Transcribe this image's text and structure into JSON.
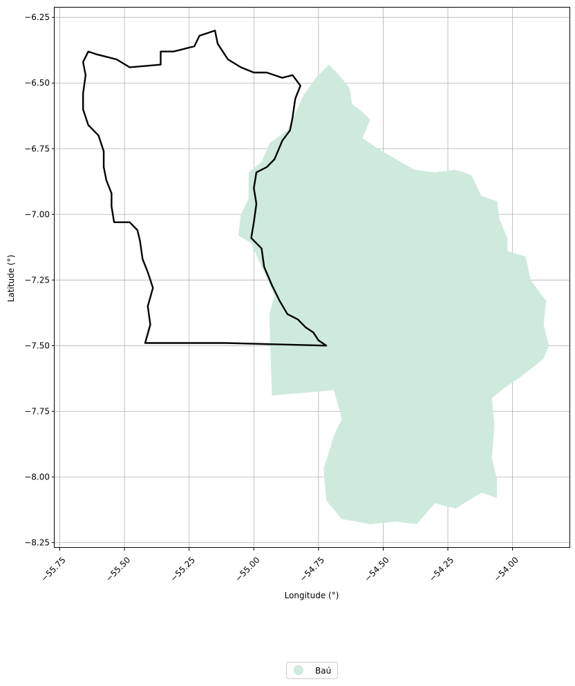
{
  "chart_data": {
    "type": "map",
    "xlabel": "Longitude (°)",
    "ylabel": "Latitude (°)",
    "xlim": [
      -55.77,
      -53.78
    ],
    "ylim": [
      -8.27,
      -6.21
    ],
    "x_ticks": [
      -55.75,
      -55.5,
      -55.25,
      -55.0,
      -54.75,
      -54.5,
      -54.25,
      -54.0
    ],
    "x_tick_labels": [
      "−55.75",
      "−55.50",
      "−55.25",
      "−55.00",
      "−54.75",
      "−54.50",
      "−54.25",
      "−54.00"
    ],
    "y_ticks": [
      -6.25,
      -6.5,
      -6.75,
      -7.0,
      -7.25,
      -7.5,
      -7.75,
      -8.0,
      -8.25
    ],
    "y_tick_labels": [
      "−6.25",
      "−6.50",
      "−6.75",
      "−7.00",
      "−7.25",
      "−7.50",
      "−7.75",
      "−8.00",
      "−8.25"
    ],
    "grid": true,
    "legend": {
      "placement": "bottom-center",
      "entries": [
        {
          "label": "Baú",
          "color": "#cdeadd"
        }
      ]
    },
    "region": {
      "name": "Baú",
      "color": "#cdeadd",
      "polygon": [
        [
          -54.71,
          -6.43
        ],
        [
          -54.67,
          -6.47
        ],
        [
          -54.63,
          -6.52
        ],
        [
          -54.62,
          -6.58
        ],
        [
          -54.58,
          -6.61
        ],
        [
          -54.55,
          -6.64
        ],
        [
          -54.58,
          -6.71
        ],
        [
          -54.52,
          -6.75
        ],
        [
          -54.45,
          -6.79
        ],
        [
          -54.38,
          -6.83
        ],
        [
          -54.3,
          -6.84
        ],
        [
          -54.22,
          -6.83
        ],
        [
          -54.16,
          -6.85
        ],
        [
          -54.12,
          -6.93
        ],
        [
          -54.06,
          -6.95
        ],
        [
          -54.05,
          -7.02
        ],
        [
          -54.02,
          -7.09
        ],
        [
          -54.02,
          -7.14
        ],
        [
          -53.95,
          -7.16
        ],
        [
          -53.93,
          -7.25
        ],
        [
          -53.87,
          -7.33
        ],
        [
          -53.88,
          -7.42
        ],
        [
          -53.86,
          -7.5
        ],
        [
          -53.88,
          -7.55
        ],
        [
          -53.97,
          -7.62
        ],
        [
          -54.03,
          -7.66
        ],
        [
          -54.08,
          -7.7
        ],
        [
          -54.07,
          -7.8
        ],
        [
          -54.08,
          -7.93
        ],
        [
          -54.06,
          -8.01
        ],
        [
          -54.06,
          -8.08
        ],
        [
          -54.12,
          -8.06
        ],
        [
          -54.22,
          -8.12
        ],
        [
          -54.3,
          -8.1
        ],
        [
          -54.37,
          -8.18
        ],
        [
          -54.45,
          -8.17
        ],
        [
          -54.55,
          -8.18
        ],
        [
          -54.66,
          -8.16
        ],
        [
          -54.72,
          -8.09
        ],
        [
          -54.73,
          -7.97
        ],
        [
          -54.69,
          -7.84
        ],
        [
          -54.66,
          -7.78
        ],
        [
          -54.69,
          -7.67
        ],
        [
          -54.93,
          -7.69
        ],
        [
          -54.94,
          -7.38
        ],
        [
          -54.92,
          -7.31
        ],
        [
          -54.97,
          -7.2
        ],
        [
          -55.01,
          -7.11
        ],
        [
          -55.06,
          -7.08
        ],
        [
          -55.05,
          -7.0
        ],
        [
          -55.02,
          -6.94
        ],
        [
          -55.02,
          -6.84
        ],
        [
          -54.97,
          -6.8
        ],
        [
          -54.94,
          -6.73
        ],
        [
          -54.87,
          -6.68
        ],
        [
          -54.81,
          -6.55
        ],
        [
          -54.76,
          -6.48
        ]
      ]
    },
    "outline": {
      "color": "#000000",
      "polygon": [
        [
          -55.64,
          -6.38
        ],
        [
          -55.61,
          -6.39
        ],
        [
          -55.57,
          -6.4
        ],
        [
          -55.53,
          -6.41
        ],
        [
          -55.48,
          -6.44
        ],
        [
          -55.36,
          -6.43
        ],
        [
          -55.36,
          -6.38
        ],
        [
          -55.31,
          -6.38
        ],
        [
          -55.27,
          -6.37
        ],
        [
          -55.23,
          -6.36
        ],
        [
          -55.21,
          -6.32
        ],
        [
          -55.15,
          -6.3
        ],
        [
          -55.14,
          -6.35
        ],
        [
          -55.1,
          -6.41
        ],
        [
          -55.05,
          -6.44
        ],
        [
          -55.0,
          -6.46
        ],
        [
          -54.95,
          -6.46
        ],
        [
          -54.89,
          -6.48
        ],
        [
          -54.85,
          -6.47
        ],
        [
          -54.82,
          -6.51
        ],
        [
          -54.84,
          -6.56
        ],
        [
          -54.85,
          -6.63
        ],
        [
          -54.86,
          -6.68
        ],
        [
          -54.89,
          -6.72
        ],
        [
          -54.92,
          -6.79
        ],
        [
          -54.95,
          -6.82
        ],
        [
          -54.99,
          -6.84
        ],
        [
          -55.0,
          -6.9
        ],
        [
          -54.99,
          -6.96
        ],
        [
          -55.0,
          -7.03
        ],
        [
          -55.01,
          -7.09
        ],
        [
          -54.97,
          -7.13
        ],
        [
          -54.96,
          -7.2
        ],
        [
          -54.93,
          -7.27
        ],
        [
          -54.9,
          -7.33
        ],
        [
          -54.87,
          -7.38
        ],
        [
          -54.83,
          -7.4
        ],
        [
          -54.8,
          -7.43
        ],
        [
          -54.77,
          -7.45
        ],
        [
          -54.75,
          -7.48
        ],
        [
          -54.72,
          -7.5
        ],
        [
          -55.11,
          -7.49
        ],
        [
          -55.42,
          -7.49
        ],
        [
          -55.4,
          -7.42
        ],
        [
          -55.41,
          -7.35
        ],
        [
          -55.39,
          -7.28
        ],
        [
          -55.41,
          -7.22
        ],
        [
          -55.43,
          -7.17
        ],
        [
          -55.44,
          -7.1
        ],
        [
          -55.45,
          -7.06
        ],
        [
          -55.48,
          -7.03
        ],
        [
          -55.54,
          -7.03
        ],
        [
          -55.55,
          -6.97
        ],
        [
          -55.55,
          -6.92
        ],
        [
          -55.57,
          -6.87
        ],
        [
          -55.58,
          -6.82
        ],
        [
          -55.58,
          -6.76
        ],
        [
          -55.6,
          -6.7
        ],
        [
          -55.64,
          -6.66
        ],
        [
          -55.66,
          -6.6
        ],
        [
          -55.66,
          -6.54
        ],
        [
          -55.65,
          -6.47
        ],
        [
          -55.66,
          -6.42
        ]
      ]
    }
  }
}
